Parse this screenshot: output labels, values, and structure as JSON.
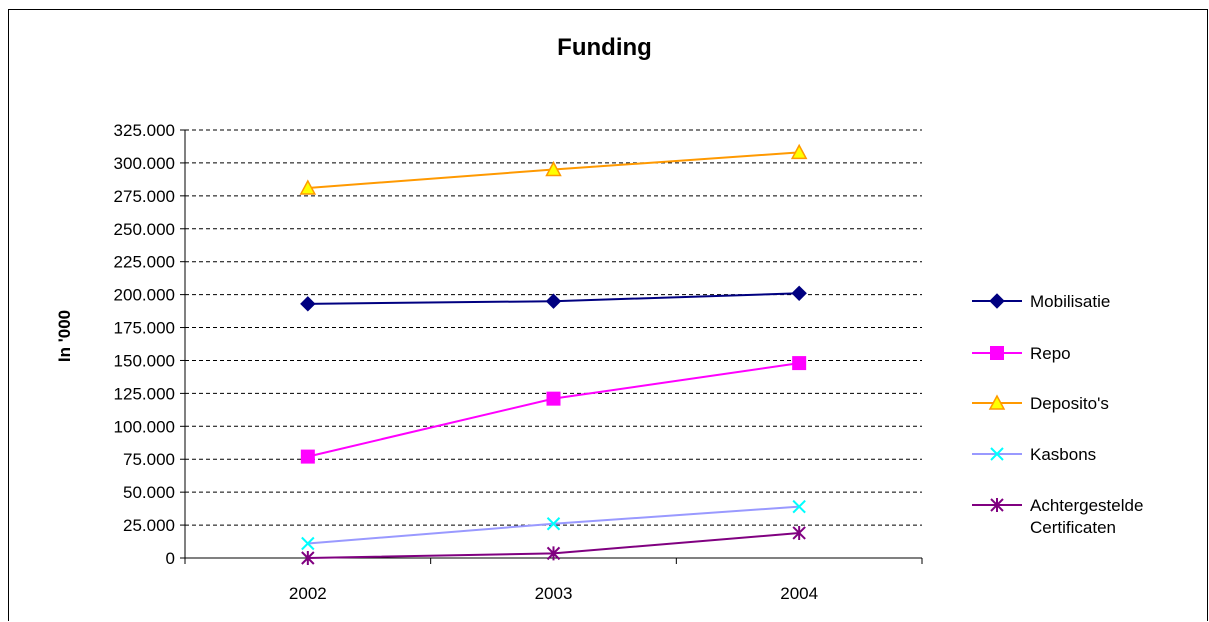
{
  "chart_data": {
    "type": "line",
    "title": "Funding",
    "xlabel": "",
    "ylabel": "In '000",
    "categories": [
      "2002",
      "2003",
      "2004"
    ],
    "ylim": [
      0,
      325000
    ],
    "yticks": [
      0,
      25000,
      50000,
      75000,
      100000,
      125000,
      150000,
      175000,
      200000,
      225000,
      250000,
      275000,
      300000,
      325000
    ],
    "ytick_labels": [
      "0",
      "25.000",
      "50.000",
      "75.000",
      "100.000",
      "125.000",
      "150.000",
      "175.000",
      "200.000",
      "225.000",
      "250.000",
      "275.000",
      "300.000",
      "325.000"
    ],
    "grid": "horizontal dashed",
    "legend_position": "right",
    "series": [
      {
        "name": "Mobilisatie",
        "values": [
          193000,
          195000,
          201000
        ],
        "color": "#000080",
        "marker_color": "#000080",
        "marker": "diamond"
      },
      {
        "name": "Repo",
        "values": [
          77000,
          121000,
          148000
        ],
        "color": "#FF00FF",
        "marker_color": "#FF00FF",
        "marker": "square"
      },
      {
        "name": "Deposito's",
        "values": [
          281000,
          295000,
          308000
        ],
        "color": "#FF9900",
        "marker_color": "#FFFF00",
        "marker": "triangle"
      },
      {
        "name": "Kasbons",
        "values": [
          11000,
          26000,
          39000
        ],
        "color": "#9999FF",
        "marker_color": "#00FFFF",
        "marker": "x"
      },
      {
        "name": "Achtergestelde Certificaten",
        "values": [
          0,
          3500,
          19000
        ],
        "color": "#800080",
        "marker_color": "#800080",
        "marker": "star"
      }
    ]
  }
}
